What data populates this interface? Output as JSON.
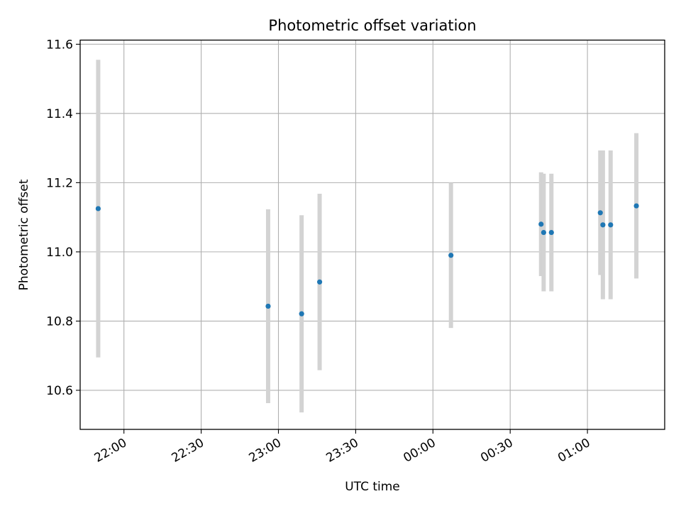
{
  "chart_data": {
    "type": "scatter",
    "title": "Photometric offset variation",
    "xlabel": "UTC time",
    "ylabel": "Photometric offset",
    "x_ticks": [
      "22:00",
      "22:30",
      "23:00",
      "23:30",
      "00:00",
      "00:30",
      "01:00"
    ],
    "y_ticks": [
      "10.6",
      "10.8",
      "11.0",
      "11.2",
      "11.4",
      "11.6"
    ],
    "xlim": [
      "21:43",
      "01:30"
    ],
    "ylim": [
      10.487,
      11.612
    ],
    "grid": true,
    "colors": {
      "point": "#1f77b4",
      "errorbar": "#d3d3d3",
      "grid": "#b0b0b0"
    },
    "points": [
      {
        "x": "21:50",
        "y": 11.125,
        "yerr": 0.43
      },
      {
        "x": "22:56",
        "y": 10.843,
        "yerr": 0.28
      },
      {
        "x": "23:09",
        "y": 10.821,
        "yerr": 0.285
      },
      {
        "x": "23:16",
        "y": 10.913,
        "yerr": 0.255
      },
      {
        "x": "00:07",
        "y": 10.99,
        "yerr": 0.21
      },
      {
        "x": "00:42",
        "y": 11.08,
        "yerr": 0.15
      },
      {
        "x": "00:43",
        "y": 11.056,
        "yerr": 0.17
      },
      {
        "x": "00:46",
        "y": 11.056,
        "yerr": 0.17
      },
      {
        "x": "01:05",
        "y": 11.113,
        "yerr": 0.18
      },
      {
        "x": "01:06",
        "y": 11.078,
        "yerr": 0.215
      },
      {
        "x": "01:09",
        "y": 11.078,
        "yerr": 0.215
      },
      {
        "x": "01:19",
        "y": 11.133,
        "yerr": 0.21
      }
    ]
  }
}
